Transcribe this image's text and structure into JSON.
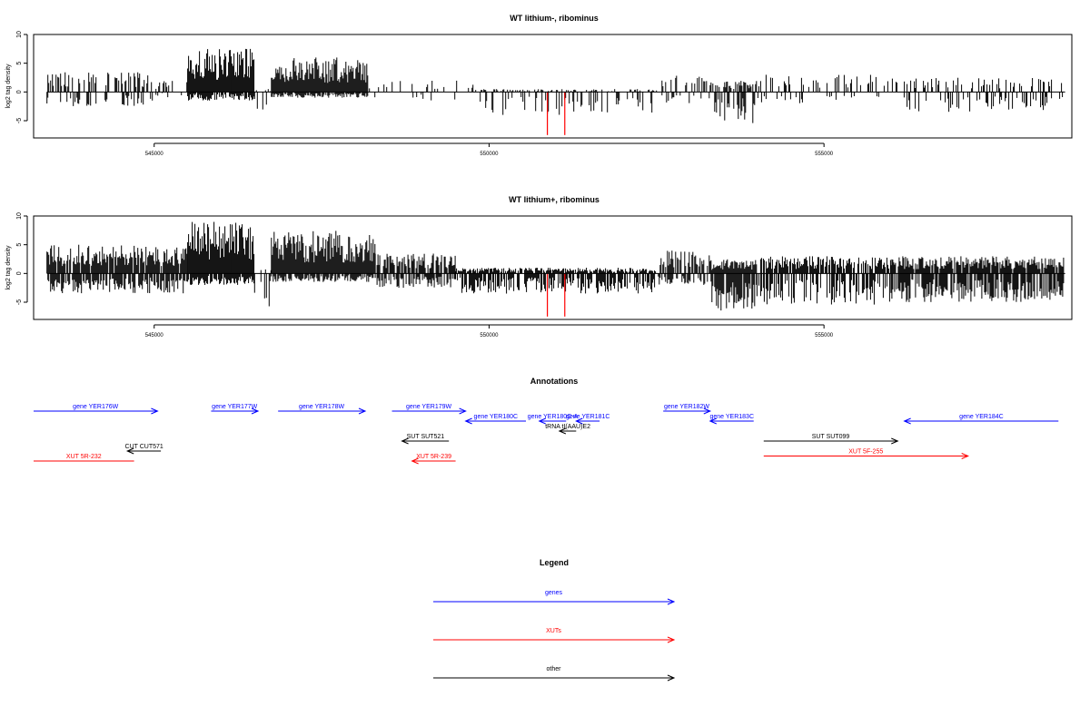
{
  "chart_data": [
    {
      "type": "bar",
      "title": "WT lithium-, ribominus",
      "xlabel": "",
      "ylabel": "log2 tag density",
      "xlim": [
        543200,
        558700
      ],
      "ylim": [
        -8,
        10
      ],
      "yticks": [
        -5,
        0,
        5,
        10
      ],
      "xticks": [
        545000,
        550000,
        555000
      ],
      "xtick_labels": [
        "545000",
        "550000",
        "555000"
      ],
      "ytick_labels": [
        "-5",
        "0",
        "5",
        "10"
      ],
      "bar_color": "#000000",
      "highlight_color": "#ff0000",
      "segments": [
        {
          "x": [
            543400,
            545000
          ],
          "pos": 3.5,
          "neg": -2.5,
          "density": 0.35
        },
        {
          "x": [
            545000,
            545500
          ],
          "pos": 2.0,
          "neg": -1.0,
          "density": 0.2
        },
        {
          "x": [
            545500,
            546500
          ],
          "pos": 7.5,
          "neg": -1.5,
          "density": 1.0
        },
        {
          "x": [
            546500,
            546750
          ],
          "pos": 0.5,
          "neg": -4.0,
          "density": 0.15
        },
        {
          "x": [
            546750,
            548200
          ],
          "pos": 6.0,
          "neg": -1.0,
          "density": 1.0
        },
        {
          "x": [
            548200,
            549800
          ],
          "pos": 2.0,
          "neg": -2.0,
          "density": 0.08
        },
        {
          "x": [
            549800,
            552500
          ],
          "pos": 0.5,
          "neg": -4.0,
          "density": 0.3
        },
        {
          "x": [
            552500,
            553300
          ],
          "pos": 3.5,
          "neg": -2.0,
          "density": 0.25
        },
        {
          "x": [
            553300,
            554000
          ],
          "pos": 2.0,
          "neg": -5.5,
          "density": 0.6
        },
        {
          "x": [
            554000,
            556200
          ],
          "pos": 3.0,
          "neg": -2.0,
          "density": 0.2
        },
        {
          "x": [
            556200,
            558600
          ],
          "pos": 2.5,
          "neg": -3.5,
          "density": 0.3
        }
      ],
      "highlight_bars": [
        {
          "x": 550870,
          "value": -7.5
        },
        {
          "x": 551130,
          "value": -7.5
        }
      ]
    },
    {
      "type": "bar",
      "title": "WT lithium+, ribominus",
      "xlabel": "",
      "ylabel": "log2 tag density",
      "xlim": [
        543200,
        558700
      ],
      "ylim": [
        -8,
        10
      ],
      "yticks": [
        -5,
        0,
        5,
        10
      ],
      "xticks": [
        545000,
        550000,
        555000
      ],
      "xtick_labels": [
        "545000",
        "550000",
        "555000"
      ],
      "ytick_labels": [
        "-5",
        "0",
        "5",
        "10"
      ],
      "bar_color": "#000000",
      "highlight_color": "#ff0000",
      "segments": [
        {
          "x": [
            543400,
            545500
          ],
          "pos": 5.0,
          "neg": -3.5,
          "density": 0.9
        },
        {
          "x": [
            545500,
            546500
          ],
          "pos": 9.0,
          "neg": -2.0,
          "density": 1.0
        },
        {
          "x": [
            546500,
            546750
          ],
          "pos": 1.0,
          "neg": -6.5,
          "density": 0.3
        },
        {
          "x": [
            546750,
            548300
          ],
          "pos": 7.5,
          "neg": -1.5,
          "density": 1.0
        },
        {
          "x": [
            548300,
            549500
          ],
          "pos": 3.5,
          "neg": -2.5,
          "density": 0.7
        },
        {
          "x": [
            549500,
            552500
          ],
          "pos": 1.0,
          "neg": -3.5,
          "density": 0.8
        },
        {
          "x": [
            552500,
            553300
          ],
          "pos": 4.0,
          "neg": -2.0,
          "density": 0.7
        },
        {
          "x": [
            553300,
            554000
          ],
          "pos": 2.5,
          "neg": -6.5,
          "density": 1.0
        },
        {
          "x": [
            554000,
            556000
          ],
          "pos": 3.0,
          "neg": -5.5,
          "density": 0.7
        },
        {
          "x": [
            556000,
            558600
          ],
          "pos": 3.0,
          "neg": -5.0,
          "density": 0.9
        }
      ],
      "highlight_bars": [
        {
          "x": 550870,
          "value": -7.5
        },
        {
          "x": 551130,
          "value": -7.5
        }
      ]
    }
  ],
  "annotations": {
    "title": "Annotations",
    "xlim": [
      543200,
      558700
    ],
    "colors": {
      "gene": "#0000ff",
      "xut": "#ff0000",
      "other": "#000000"
    },
    "features": [
      {
        "label": "gene YER176W",
        "kind": "gene",
        "start": 543200,
        "end": 545050,
        "strand": "+",
        "row": 0
      },
      {
        "label": "gene YER177W",
        "kind": "gene",
        "start": 545850,
        "end": 546550,
        "strand": "+",
        "row": 0
      },
      {
        "label": "gene YER178W",
        "kind": "gene",
        "start": 546850,
        "end": 548150,
        "strand": "+",
        "row": 0
      },
      {
        "label": "gene YER179W",
        "kind": "gene",
        "start": 548550,
        "end": 549650,
        "strand": "+",
        "row": 0
      },
      {
        "label": "gene YER180C",
        "kind": "gene",
        "start": 549650,
        "end": 550550,
        "strand": "-",
        "row": 1
      },
      {
        "label": "gene YER180C-A",
        "kind": "gene",
        "start": 550750,
        "end": 551150,
        "strand": "-",
        "row": 1
      },
      {
        "label": "gene YER181C",
        "kind": "gene",
        "start": 551300,
        "end": 551650,
        "strand": "-",
        "row": 1
      },
      {
        "label": "gene YER182W",
        "kind": "gene",
        "start": 552600,
        "end": 553300,
        "strand": "+",
        "row": 0
      },
      {
        "label": "gene YER183C",
        "kind": "gene",
        "start": 553300,
        "end": 553950,
        "strand": "-",
        "row": 1
      },
      {
        "label": "gene YER184C",
        "kind": "gene",
        "start": 556200,
        "end": 558500,
        "strand": "-",
        "row": 1
      },
      {
        "label": "tRNA tI(AAU)E2",
        "kind": "other",
        "start": 551050,
        "end": 551300,
        "strand": "-",
        "row": 2
      },
      {
        "label": "SUT SUT521",
        "kind": "other",
        "start": 548700,
        "end": 549400,
        "strand": "-",
        "row": 3
      },
      {
        "label": "SUT SUT099",
        "kind": "other",
        "start": 554100,
        "end": 556100,
        "strand": "+",
        "row": 3
      },
      {
        "label": "CUT CUT571",
        "kind": "other",
        "start": 544600,
        "end": 545100,
        "strand": "-",
        "row": 4
      },
      {
        "label": "XUT 5R-232",
        "kind": "xut",
        "start": 543200,
        "end": 544700,
        "strand": "none",
        "row": 5
      },
      {
        "label": "XUT 5R-239",
        "kind": "xut",
        "start": 548850,
        "end": 549500,
        "strand": "-",
        "row": 5
      },
      {
        "label": "XUT 5F-255",
        "kind": "xut",
        "start": 554100,
        "end": 557150,
        "strand": "+",
        "row": 4.5
      }
    ]
  },
  "legend": {
    "title": "Legend",
    "items": [
      {
        "label": "genes",
        "color": "#0000ff"
      },
      {
        "label": "XUTs",
        "color": "#ff0000"
      },
      {
        "label": "other",
        "color": "#000000"
      }
    ]
  }
}
